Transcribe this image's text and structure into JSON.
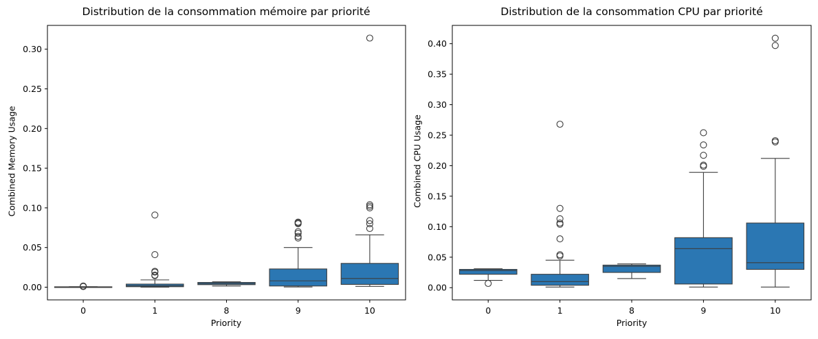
{
  "chart_data": [
    {
      "type": "box",
      "title": "Distribution de la consommation mémoire par priorité",
      "xlabel": "Priority",
      "ylabel": "Combined Memory Usage",
      "categories": [
        "0",
        "1",
        "8",
        "9",
        "10"
      ],
      "ylim": [
        -0.016,
        0.33
      ],
      "yticks": [
        0.0,
        0.05,
        0.1,
        0.15,
        0.2,
        0.25,
        0.3
      ],
      "ytick_labels": [
        "0.00",
        "0.05",
        "0.10",
        "0.15",
        "0.20",
        "0.25",
        "0.30"
      ],
      "box_color": "#2b77b3",
      "boxes": [
        {
          "category": "0",
          "whislo": 0.0,
          "q1": 0.0003,
          "med": 0.0004,
          "q3": 0.0005,
          "whishi": 0.0006,
          "fliers": [
            0.0008,
            0.0012,
            0.0015
          ]
        },
        {
          "category": "1",
          "whislo": 0.0,
          "q1": 0.0006,
          "med": 0.0018,
          "q3": 0.0039,
          "whishi": 0.0092,
          "fliers": [
            0.0145,
            0.0152,
            0.019,
            0.02,
            0.041,
            0.091
          ]
        },
        {
          "category": "8",
          "whislo": 0.0015,
          "q1": 0.0032,
          "med": 0.0045,
          "q3": 0.006,
          "whishi": 0.0068,
          "fliers": []
        },
        {
          "category": "9",
          "whislo": 0.0003,
          "q1": 0.0015,
          "med": 0.008,
          "q3": 0.023,
          "whishi": 0.05,
          "fliers": [
            0.062,
            0.064,
            0.068,
            0.07,
            0.08,
            0.081,
            0.082
          ]
        },
        {
          "category": "10",
          "whislo": 0.001,
          "q1": 0.0035,
          "med": 0.011,
          "q3": 0.03,
          "whishi": 0.066,
          "fliers": [
            0.074,
            0.08,
            0.084,
            0.1,
            0.102,
            0.104,
            0.314
          ]
        }
      ]
    },
    {
      "type": "box",
      "title": "Distribution de la consommation CPU par priorité",
      "xlabel": "Priority",
      "ylabel": "Combined CPU Usage",
      "categories": [
        "0",
        "1",
        "8",
        "9",
        "10"
      ],
      "ylim": [
        -0.02,
        0.43
      ],
      "yticks": [
        0.0,
        0.05,
        0.1,
        0.15,
        0.2,
        0.25,
        0.3,
        0.35,
        0.4
      ],
      "ytick_labels": [
        "0.00",
        "0.05",
        "0.10",
        "0.15",
        "0.20",
        "0.25",
        "0.30",
        "0.35",
        "0.40"
      ],
      "box_color": "#2b77b3",
      "boxes": [
        {
          "category": "0",
          "whislo": 0.012,
          "q1": 0.022,
          "med": 0.028,
          "q3": 0.03,
          "whishi": 0.031,
          "fliers": [
            0.007
          ]
        },
        {
          "category": "1",
          "whislo": 0.001,
          "q1": 0.004,
          "med": 0.01,
          "q3": 0.022,
          "whishi": 0.045,
          "fliers": [
            0.052,
            0.054,
            0.08,
            0.104,
            0.106,
            0.113,
            0.13,
            0.268
          ]
        },
        {
          "category": "8",
          "whislo": 0.015,
          "q1": 0.025,
          "med": 0.035,
          "q3": 0.037,
          "whishi": 0.039,
          "fliers": []
        },
        {
          "category": "9",
          "whislo": 0.001,
          "q1": 0.006,
          "med": 0.064,
          "q3": 0.082,
          "whishi": 0.189,
          "fliers": [
            0.199,
            0.201,
            0.217,
            0.234,
            0.254
          ]
        },
        {
          "category": "10",
          "whislo": 0.001,
          "q1": 0.03,
          "med": 0.041,
          "q3": 0.106,
          "whishi": 0.212,
          "fliers": [
            0.239,
            0.241,
            0.397,
            0.409
          ]
        }
      ]
    }
  ]
}
